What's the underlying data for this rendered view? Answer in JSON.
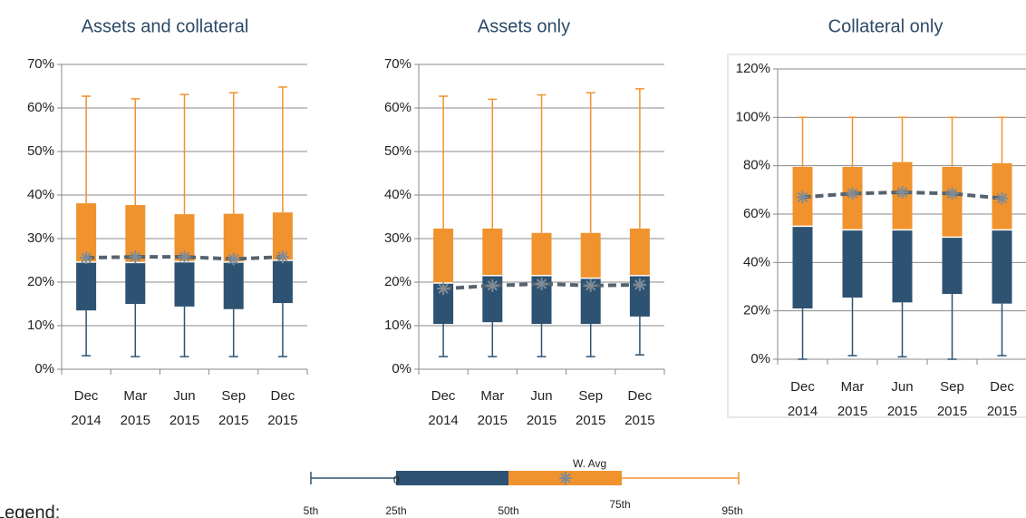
{
  "chart_data": [
    {
      "type": "box",
      "title": "Assets and collateral",
      "categories": [
        [
          "Dec",
          "2014"
        ],
        [
          "Mar",
          "2015"
        ],
        [
          "Jun",
          "2015"
        ],
        [
          "Sep",
          "2015"
        ],
        [
          "Dec",
          "2015"
        ]
      ],
      "whisker_low": [
        3.1,
        2.9,
        2.9,
        2.9,
        2.9
      ],
      "q1": [
        13.5,
        15,
        14.4,
        13.8,
        15.2
      ],
      "median": [
        24.6,
        24.5,
        24.7,
        24.6,
        25
      ],
      "q3": [
        38.1,
        37.7,
        35.6,
        35.7,
        36
      ],
      "whisker_high": [
        62.7,
        62.1,
        63.1,
        63.5,
        64.8
      ],
      "w_avg": [
        25.6,
        25.8,
        25.8,
        25.3,
        25.8
      ],
      "ylim": [
        0,
        70
      ],
      "yticks": [
        {
          "value": 0,
          "label": "0%"
        },
        {
          "value": 10,
          "label": "10%"
        },
        {
          "value": 20,
          "label": "20%"
        },
        {
          "value": 30,
          "label": "30%"
        },
        {
          "value": 40,
          "label": "40%"
        },
        {
          "value": 50,
          "label": "50%"
        },
        {
          "value": 60,
          "label": "60%"
        },
        {
          "value": 70,
          "label": "70%"
        }
      ],
      "grid": true,
      "frame": false,
      "lower_color": "#2e5272",
      "upper_color": "#f0932e",
      "avg_color": "#56636e"
    },
    {
      "type": "box",
      "title": "Assets only",
      "categories": [
        [
          "Dec",
          "2014"
        ],
        [
          "Mar",
          "2015"
        ],
        [
          "Jun",
          "2015"
        ],
        [
          "Sep",
          "2015"
        ],
        [
          "Dec",
          "2015"
        ]
      ],
      "whisker_low": [
        2.9,
        2.9,
        2.9,
        2.9,
        3.3
      ],
      "q1": [
        10.4,
        10.8,
        10.4,
        10.4,
        12.1
      ],
      "median": [
        19.8,
        21.5,
        21.5,
        20.9,
        21.5
      ],
      "q3": [
        32.3,
        32.3,
        31.3,
        31.3,
        32.3
      ],
      "whisker_high": [
        62.7,
        62,
        63,
        63.5,
        64.4
      ],
      "w_avg": [
        18.5,
        19.2,
        19.6,
        19.2,
        19.4
      ],
      "ylim": [
        0,
        70
      ],
      "yticks": [
        {
          "value": 0,
          "label": "0%"
        },
        {
          "value": 10,
          "label": "10%"
        },
        {
          "value": 20,
          "label": "20%"
        },
        {
          "value": 30,
          "label": "30%"
        },
        {
          "value": 40,
          "label": "40%"
        },
        {
          "value": 50,
          "label": "50%"
        },
        {
          "value": 60,
          "label": "60%"
        },
        {
          "value": 70,
          "label": "70%"
        }
      ],
      "grid": true,
      "frame": false,
      "lower_color": "#2e5272",
      "upper_color": "#f0932e",
      "avg_color": "#56636e"
    },
    {
      "type": "box",
      "title": "Collateral only",
      "categories": [
        [
          "Dec",
          "2014"
        ],
        [
          "Mar",
          "2015"
        ],
        [
          "Jun",
          "2015"
        ],
        [
          "Sep",
          "2015"
        ],
        [
          "Dec",
          "2015"
        ]
      ],
      "whisker_low": [
        0,
        1.5,
        1,
        0,
        1.5
      ],
      "q1": [
        21,
        25.5,
        23.5,
        27,
        23
      ],
      "median": [
        55,
        53.5,
        53.5,
        50.5,
        53.5
      ],
      "q3": [
        79.5,
        79.5,
        81.5,
        79.5,
        81
      ],
      "whisker_high": [
        100,
        100,
        100,
        100,
        100
      ],
      "w_avg": [
        67,
        68.5,
        69,
        68.5,
        66.5
      ],
      "ylim": [
        0,
        120
      ],
      "yticks": [
        {
          "value": 0,
          "label": "0%"
        },
        {
          "value": 20,
          "label": "20%"
        },
        {
          "value": 40,
          "label": "40%"
        },
        {
          "value": 60,
          "label": "60%"
        },
        {
          "value": 80,
          "label": "80%"
        },
        {
          "value": 100,
          "label": "100%"
        },
        {
          "value": 120,
          "label": "120%"
        }
      ],
      "grid": true,
      "frame": true,
      "lower_color": "#2e5272",
      "upper_color": "#f0932e",
      "avg_color": "#56636e"
    }
  ],
  "legend": {
    "title": "Legend:",
    "labels": [
      "5th",
      "25th",
      "50th",
      "75th",
      "95th"
    ],
    "avg_label": "W. Avg",
    "marker_label": "0"
  }
}
